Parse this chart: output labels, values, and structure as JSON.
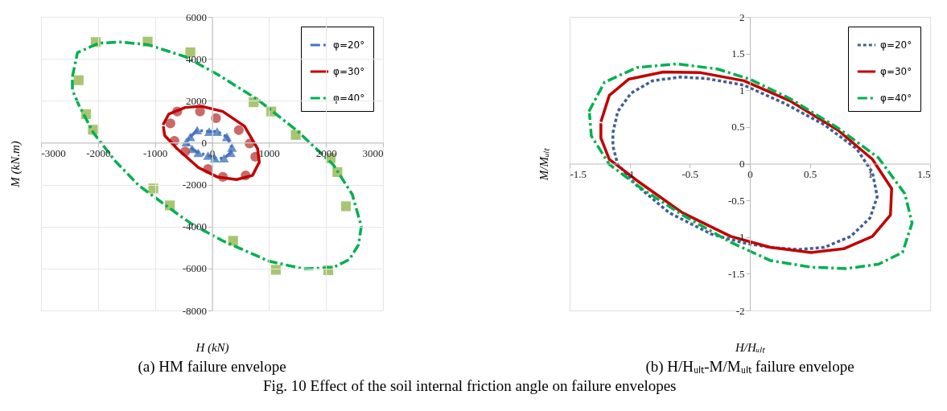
{
  "chart_data": [
    {
      "type": "line",
      "title": "(a) HM failure envelope",
      "xlabel": "H (kN)",
      "ylabel": "M (kN.m)",
      "xlim": [
        -3000,
        3000
      ],
      "xticks": [
        -3000,
        -2000,
        -1000,
        0,
        1000,
        2000,
        3000
      ],
      "ylim": [
        -8000,
        6000
      ],
      "yticks": [
        -8000,
        -6000,
        -4000,
        -2000,
        0,
        2000,
        4000,
        6000
      ],
      "grid": true,
      "legend": "top right",
      "annotations": [
        "Fig. 10 Effect of the soil internal friction angle on failure envelopes"
      ],
      "series": [
        {
          "name": "φ=20°",
          "color": "#4472c4",
          "line_style": "dashed",
          "x": [
            -380,
            -260,
            -50,
            90,
            260,
            350,
            330,
            210,
            50,
            -70,
            -240,
            -350,
            -450,
            -395
          ],
          "values": [
            280,
            600,
            530,
            530,
            280,
            -230,
            -480,
            -740,
            -740,
            -610,
            -480,
            -290,
            30,
            240
          ]
        },
        {
          "type": "scatter",
          "marker": "triangle",
          "color": "#4f81bd",
          "x": [
            -380,
            -260,
            -50,
            90,
            260,
            350,
            330,
            210,
            50,
            -70,
            -240,
            -350,
            -450
          ],
          "values": [
            280,
            600,
            530,
            530,
            280,
            -230,
            -480,
            -740,
            -740,
            -610,
            -480,
            -290,
            30
          ]
        },
        {
          "name": "φ=30°",
          "color": "#c00000",
          "line_style": "solid",
          "x": [
            -860,
            -760,
            -470,
            -190,
            190,
            570,
            800,
            830,
            710,
            430,
            90,
            -240,
            -610,
            -830,
            -855
          ],
          "values": [
            850,
            1360,
            1680,
            1740,
            1490,
            790,
            -290,
            -930,
            -1560,
            -1760,
            -1630,
            -1180,
            -290,
            340,
            780
          ]
        },
        {
          "type": "scatter",
          "marker": "circle",
          "color": "#c0504d",
          "x": [
            -730,
            -610,
            -210,
            70,
            470,
            660,
            760,
            590,
            190,
            -70,
            -470,
            -660
          ],
          "values": [
            920,
            1490,
            1490,
            1170,
            600,
            -40,
            -670,
            -1560,
            -1630,
            -1250,
            -420,
            90
          ]
        },
        {
          "name": "φ=40°",
          "color": "#00b050",
          "line_style": "dashed",
          "x": [
            -2450,
            -2360,
            -1980,
            -1610,
            -1130,
            -470,
            90,
            800,
            1510,
            2130,
            2460,
            2620,
            2570,
            2410,
            2130,
            1610,
            990,
            190,
            -330,
            -570,
            -1280,
            -1700,
            -2080,
            -2340,
            -2450,
            -2450
          ],
          "values": [
            3150,
            4300,
            4750,
            4800,
            4680,
            4100,
            3270,
            2060,
            530,
            -1060,
            -2460,
            -3980,
            -4870,
            -5570,
            -5950,
            -6020,
            -5640,
            -4680,
            -3920,
            -3470,
            -2050,
            -870,
            470,
            1810,
            2510,
            3050
          ]
        },
        {
          "type": "scatter",
          "marker": "square",
          "color": "#9bbb59",
          "x": [
            -2040,
            -1130,
            -380,
            -2340,
            -2210,
            -2090,
            730,
            1040,
            1470,
            2080,
            2200,
            2350,
            -1030,
            -740,
            370,
            1120,
            2040
          ],
          "values": [
            4800,
            4820,
            4310,
            2980,
            1360,
            620,
            1930,
            1490,
            370,
            -740,
            -1400,
            -3030,
            -2180,
            -2990,
            -4680,
            -6060,
            -6080
          ]
        }
      ]
    },
    {
      "type": "line",
      "title": "(b) H/Hᵤₗₜ-M/Mᵤₗₜ failure envelope",
      "xlabel": "H/Hᵤₗₜ",
      "ylabel": "M/Mᵤₗₜ",
      "xlim": [
        -1.5,
        1.5
      ],
      "xticks": [
        -1.5,
        -1,
        -0.5,
        0,
        0.5,
        1,
        1.5
      ],
      "ylim": [
        -2,
        2
      ],
      "yticks": [
        -2,
        -1.5,
        -1,
        -0.5,
        0,
        0.5,
        1,
        1.5,
        2
      ],
      "grid": false,
      "legend": "top right",
      "series": [
        {
          "name": "φ=20°",
          "color": "#3f5f93",
          "line_style": "dotted",
          "x": [
            -1.14,
            -1.1,
            -0.99,
            -0.81,
            -0.58,
            -0.36,
            -0.05,
            0.29,
            0.62,
            0.89,
            1.02,
            1.06,
            1.0,
            0.84,
            0.62,
            0.4,
            0.17,
            -0.05,
            -0.32,
            -0.67,
            -0.94,
            -1.1,
            -1.14,
            -1.14
          ],
          "values": [
            0.42,
            0.71,
            0.96,
            1.13,
            1.18,
            1.16,
            1.07,
            0.82,
            0.53,
            0.2,
            -0.12,
            -0.45,
            -0.74,
            -0.99,
            -1.14,
            -1.17,
            -1.14,
            -1.08,
            -0.96,
            -0.67,
            -0.3,
            -0.01,
            0.24,
            0.4
          ]
        },
        {
          "name": "φ=30°",
          "color": "#c00000",
          "line_style": "solid",
          "x": [
            -1.24,
            -1.17,
            -1.01,
            -0.72,
            -0.41,
            -0.05,
            0.33,
            0.73,
            1.02,
            1.18,
            1.17,
            1.02,
            0.78,
            0.51,
            0.17,
            -0.16,
            -0.56,
            -0.94,
            -1.17,
            -1.24,
            -1.24
          ],
          "values": [
            0.57,
            0.93,
            1.15,
            1.25,
            1.24,
            1.13,
            0.86,
            0.46,
            0.06,
            -0.34,
            -0.7,
            -0.99,
            -1.16,
            -1.21,
            -1.14,
            -0.99,
            -0.67,
            -0.23,
            0.06,
            0.35,
            0.55
          ]
        },
        {
          "name": "φ=40°",
          "color": "#00b050",
          "line_style": "dashed",
          "x": [
            -1.34,
            -1.21,
            -0.94,
            -0.61,
            -0.27,
            0.0,
            0.33,
            0.73,
            1.07,
            1.29,
            1.35,
            1.27,
            1.07,
            0.8,
            0.51,
            0.17,
            -0.16,
            -0.56,
            -0.9,
            -1.17,
            -1.32,
            -1.335
          ],
          "values": [
            0.71,
            1.11,
            1.31,
            1.36,
            1.29,
            1.15,
            0.89,
            0.49,
            0.08,
            -0.41,
            -0.81,
            -1.21,
            -1.37,
            -1.43,
            -1.41,
            -1.32,
            -1.07,
            -0.7,
            -0.34,
            -0.01,
            0.38,
            0.69
          ]
        }
      ]
    }
  ]
}
